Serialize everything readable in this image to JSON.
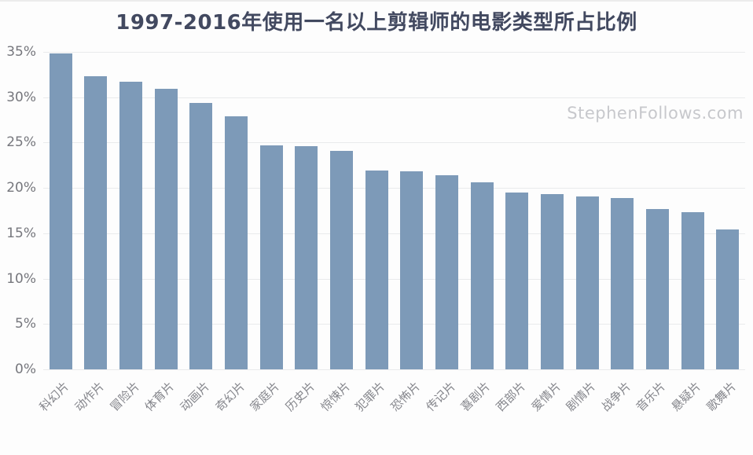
{
  "page": {
    "background": "#fdfdfd",
    "top_border_color": "#ececec"
  },
  "header": {
    "title": "1997-2016年使用一名以上剪辑师的电影类型所占比例",
    "title_color": "#424960"
  },
  "watermark": {
    "text": "StephenFollows.com",
    "color": "#c7c8cc"
  },
  "chart_data": {
    "type": "bar",
    "title": "1997-2016年使用一名以上剪辑师的电影类型所占比例",
    "categories": [
      "科幻片",
      "动作片",
      "冒险片",
      "体育片",
      "动画片",
      "奇幻片",
      "家庭片",
      "历史片",
      "惊悚片",
      "犯罪片",
      "恐怖片",
      "传记片",
      "喜剧片",
      "西部片",
      "爱情片",
      "剧情片",
      "战争片",
      "音乐片",
      "悬疑片",
      "歌舞片"
    ],
    "values": [
      34.8,
      32.3,
      31.7,
      30.9,
      29.4,
      27.9,
      24.7,
      24.6,
      24.1,
      21.9,
      21.8,
      21.4,
      20.6,
      19.5,
      19.3,
      19.1,
      18.9,
      17.7,
      17.3,
      15.4
    ],
    "unit": "%",
    "xlabel": "",
    "ylabel": "",
    "ylim": [
      0,
      35
    ],
    "ytick_step": 5,
    "ytick_labels": [
      "0%",
      "5%",
      "10%",
      "15%",
      "20%",
      "25%",
      "30%",
      "35%"
    ],
    "grid": true,
    "legend_position": "none",
    "bar_color": "#7d9ab8",
    "gridline_color": "#e9eaec",
    "axis_label_color": "#76777d",
    "category_label_color": "#85868c"
  }
}
